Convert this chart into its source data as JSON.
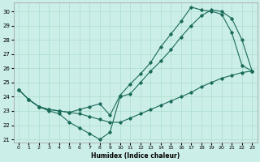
{
  "xlabel": "Humidex (Indice chaleur)",
  "bg_color": "#cceee8",
  "grid_color": "#aaddcc",
  "line_color": "#1a6b5a",
  "xlim": [
    -0.5,
    23.5
  ],
  "ylim": [
    20.8,
    30.6
  ],
  "xticks": [
    0,
    1,
    2,
    3,
    4,
    5,
    6,
    7,
    8,
    9,
    10,
    11,
    12,
    13,
    14,
    15,
    16,
    17,
    18,
    19,
    20,
    21,
    22,
    23
  ],
  "yticks": [
    21,
    22,
    23,
    24,
    25,
    26,
    27,
    28,
    29,
    30
  ],
  "line1_x": [
    0,
    1,
    2,
    3,
    4,
    5,
    6,
    7,
    8,
    9,
    10,
    11,
    12,
    13,
    14,
    15,
    16,
    17,
    18,
    19,
    20,
    21,
    22,
    23
  ],
  "line1_y": [
    24.5,
    23.8,
    23.3,
    23.1,
    23.0,
    22.9,
    22.8,
    22.6,
    22.4,
    22.2,
    22.2,
    22.5,
    22.8,
    23.1,
    23.4,
    23.7,
    24.0,
    24.3,
    24.7,
    25.0,
    25.3,
    25.5,
    25.7,
    25.8
  ],
  "line2_x": [
    0,
    1,
    2,
    3,
    4,
    5,
    6,
    7,
    8,
    9,
    10,
    11,
    12,
    13,
    14,
    15,
    16,
    17,
    18,
    19,
    20,
    21,
    22,
    23
  ],
  "line2_y": [
    24.5,
    23.8,
    23.3,
    23.1,
    23.0,
    22.9,
    23.1,
    23.3,
    23.5,
    22.7,
    24.1,
    24.9,
    25.6,
    26.4,
    27.5,
    28.4,
    29.3,
    30.3,
    30.1,
    30.0,
    29.8,
    28.5,
    26.2,
    25.8
  ],
  "line3_x": [
    0,
    1,
    2,
    3,
    4,
    5,
    6,
    7,
    8,
    9,
    10,
    11,
    12,
    13,
    14,
    15,
    16,
    17,
    18,
    19,
    20,
    21,
    22,
    23
  ],
  "line3_y": [
    24.5,
    23.8,
    23.3,
    23.0,
    22.8,
    22.2,
    21.8,
    21.4,
    21.0,
    21.5,
    24.0,
    24.2,
    25.0,
    25.8,
    26.5,
    27.3,
    28.2,
    29.0,
    29.7,
    30.1,
    30.0,
    29.5,
    28.0,
    25.8
  ]
}
